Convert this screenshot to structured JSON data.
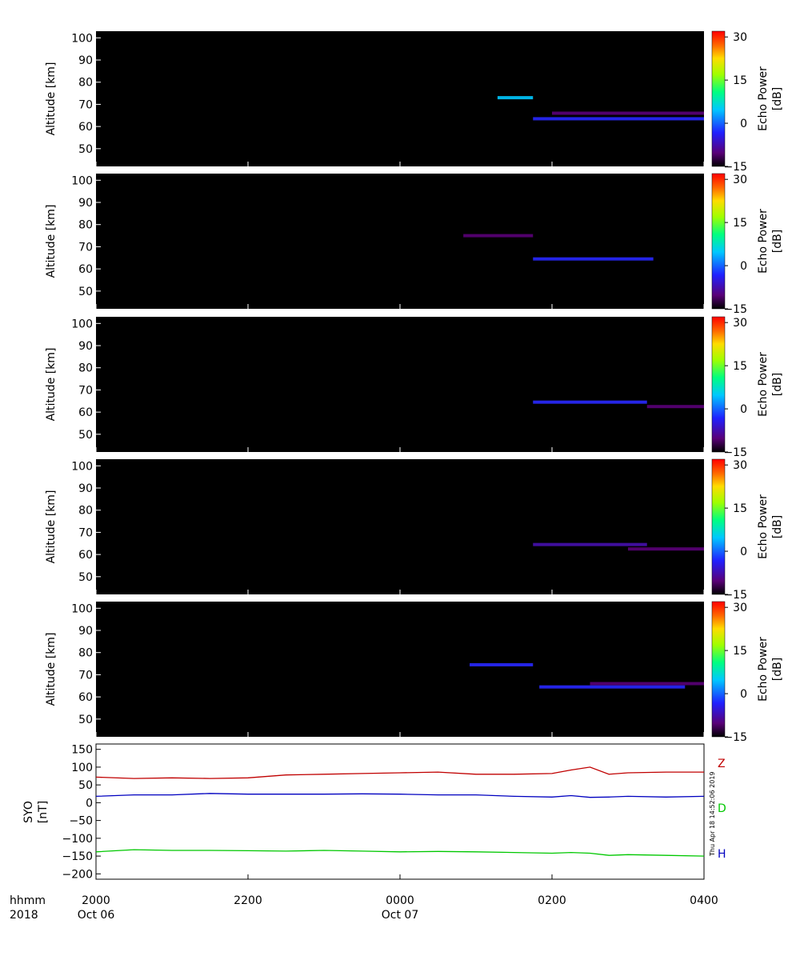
{
  "chart_data": [
    {
      "type": "heatmap",
      "panel": 1,
      "ylabel": "Altitude [km]",
      "y_ticks": [
        "100",
        "90",
        "80",
        "70",
        "60",
        "50"
      ],
      "ylim": [
        42,
        103
      ],
      "xlim_hours": [
        20,
        28
      ],
      "colorbar": {
        "label_line1": "Echo Power",
        "label_line2": "[dB]",
        "ticks": [
          "30",
          "15",
          "0",
          "-15"
        ],
        "range": [
          -15,
          32
        ]
      },
      "features": [
        {
          "start": "0117",
          "end": "0145",
          "alt": 73,
          "power": 0
        },
        {
          "start": "0145",
          "end": "0400",
          "alt": 63.5,
          "power": -5
        },
        {
          "start": "0200",
          "end": "0400",
          "alt": 66,
          "power": -10
        }
      ]
    },
    {
      "type": "heatmap",
      "panel": 2,
      "ylabel": "Altitude [km]",
      "y_ticks": [
        "100",
        "90",
        "80",
        "70",
        "60",
        "50"
      ],
      "ylim": [
        42,
        103
      ],
      "xlim_hours": [
        20,
        28
      ],
      "colorbar": {
        "label_line1": "Echo Power",
        "label_line2": "[dB]",
        "ticks": [
          "30",
          "15",
          "0",
          "-15"
        ],
        "range": [
          -15,
          32
        ]
      },
      "features": [
        {
          "start": "0050",
          "end": "0145",
          "alt": 75,
          "power": -10
        },
        {
          "start": "0145",
          "end": "0320",
          "alt": 64.5,
          "power": -5
        }
      ]
    },
    {
      "type": "heatmap",
      "panel": 3,
      "ylabel": "Altitude [km]",
      "y_ticks": [
        "100",
        "90",
        "80",
        "70",
        "60",
        "50"
      ],
      "ylim": [
        42,
        103
      ],
      "xlim_hours": [
        20,
        28
      ],
      "colorbar": {
        "label_line1": "Echo Power",
        "label_line2": "[dB]",
        "ticks": [
          "30",
          "15",
          "0",
          "-15"
        ],
        "range": [
          -15,
          32
        ]
      },
      "features": [
        {
          "start": "0145",
          "end": "0315",
          "alt": 64.5,
          "power": -5
        },
        {
          "start": "0315",
          "end": "0400",
          "alt": 62.5,
          "power": -10
        }
      ]
    },
    {
      "type": "heatmap",
      "panel": 4,
      "ylabel": "Altitude [km]",
      "y_ticks": [
        "100",
        "90",
        "80",
        "70",
        "60",
        "50"
      ],
      "ylim": [
        42,
        103
      ],
      "xlim_hours": [
        20,
        28
      ],
      "colorbar": {
        "label_line1": "Echo Power",
        "label_line2": "[dB]",
        "ticks": [
          "30",
          "15",
          "0",
          "-15"
        ],
        "range": [
          -15,
          32
        ]
      },
      "features": [
        {
          "start": "0145",
          "end": "0315",
          "alt": 64.5,
          "power": -8
        },
        {
          "start": "0300",
          "end": "0400",
          "alt": 62.5,
          "power": -10
        }
      ]
    },
    {
      "type": "heatmap",
      "panel": 5,
      "ylabel": "Altitude [km]",
      "y_ticks": [
        "100",
        "90",
        "80",
        "70",
        "60",
        "50"
      ],
      "ylim": [
        42,
        103
      ],
      "xlim_hours": [
        20,
        28
      ],
      "colorbar": {
        "label_line1": "Echo Power",
        "label_line2": "[dB]",
        "ticks": [
          "30",
          "15",
          "0",
          "-15"
        ],
        "range": [
          -15,
          32
        ]
      },
      "features": [
        {
          "start": "0055",
          "end": "0145",
          "alt": 74.5,
          "power": -5
        },
        {
          "start": "0150",
          "end": "0345",
          "alt": 64.5,
          "power": -5
        },
        {
          "start": "0230",
          "end": "0400",
          "alt": 66,
          "power": -10
        }
      ]
    },
    {
      "type": "line",
      "ylabel_line1": "SYO",
      "ylabel_line2": "[nT]",
      "y_ticks": [
        "150",
        "100",
        "50",
        "0",
        "-50",
        "-100",
        "-150",
        "-200"
      ],
      "ylim": [
        -215,
        165
      ],
      "x_hours": [
        20,
        20.5,
        21,
        21.5,
        22,
        22.5,
        23,
        23.5,
        24,
        24.5,
        25,
        25.5,
        26,
        26.25,
        26.5,
        26.75,
        27,
        27.5,
        28
      ],
      "series": [
        {
          "name": "Z",
          "color": "#c00000",
          "values": [
            72,
            68,
            70,
            68,
            70,
            78,
            80,
            82,
            84,
            86,
            80,
            80,
            82,
            92,
            100,
            80,
            84,
            86,
            86
          ]
        },
        {
          "name": "D",
          "color": "#00c800",
          "values": [
            -138,
            -132,
            -134,
            -134,
            -135,
            -136,
            -134,
            -136,
            -138,
            -137,
            -138,
            -140,
            -142,
            -140,
            -142,
            -148,
            -146,
            -148,
            -150
          ]
        },
        {
          "name": "H",
          "color": "#0000c0",
          "values": [
            18,
            22,
            22,
            26,
            24,
            24,
            24,
            25,
            24,
            22,
            22,
            18,
            16,
            20,
            15,
            16,
            18,
            16,
            18
          ]
        }
      ]
    }
  ],
  "x_axis": {
    "row1_label": "hhmm",
    "row2_label": "2018",
    "ticks": [
      {
        "hour": 20,
        "time": "2000",
        "date": "Oct 06"
      },
      {
        "hour": 22,
        "time": "2200",
        "date": ""
      },
      {
        "hour": 24,
        "time": "0000",
        "date": "Oct 07"
      },
      {
        "hour": 26,
        "time": "0200",
        "date": ""
      },
      {
        "hour": 28,
        "time": "0400",
        "date": ""
      }
    ]
  },
  "timestamp": "Thu Apr 18 14:52:06 2019"
}
